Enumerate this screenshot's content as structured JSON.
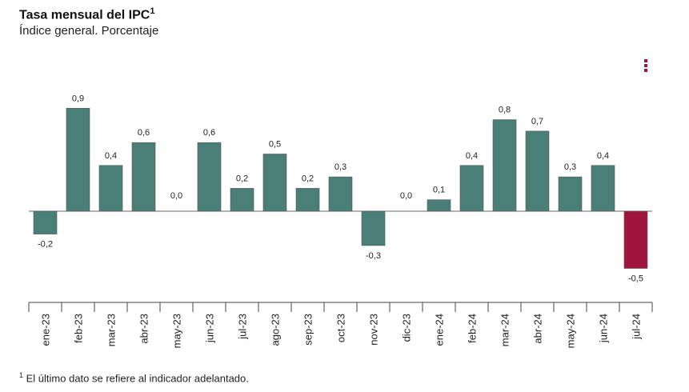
{
  "header": {
    "title": "Tasa mensual del IPC",
    "title_sup": "1",
    "subtitle": "Índice general. Porcentaje"
  },
  "menu": {
    "icon": "vertical-dots-icon",
    "color": "#a0153e"
  },
  "footnote": {
    "sup": "1",
    "text": "El último dato se refiere al indicador adelantado."
  },
  "chart_data": {
    "type": "bar",
    "categories": [
      "ene-23",
      "feb-23",
      "mar-23",
      "abr-23",
      "may-23",
      "jun-23",
      "jul-23",
      "ago-23",
      "sep-23",
      "oct-23",
      "nov-23",
      "dic-23",
      "ene-24",
      "feb-24",
      "mar-24",
      "abr-24",
      "may-24",
      "jun-24",
      "jul-24"
    ],
    "values": [
      -0.2,
      0.9,
      0.4,
      0.6,
      0.0,
      0.6,
      0.2,
      0.5,
      0.2,
      0.3,
      -0.3,
      0.0,
      0.1,
      0.4,
      0.8,
      0.7,
      0.3,
      0.4,
      -0.5
    ],
    "labels": [
      "-0,2",
      "0,9",
      "0,4",
      "0,6",
      "0,0",
      "0,6",
      "0,2",
      "0,5",
      "0,2",
      "0,3",
      "-0,3",
      "0,0",
      "0,1",
      "0,4",
      "0,8",
      "0,7",
      "0,3",
      "0,4",
      "-0,5"
    ],
    "colors": {
      "default": "#4a7f78",
      "highlight": "#a0153e"
    },
    "highlight_index": 18,
    "grid": false
  }
}
